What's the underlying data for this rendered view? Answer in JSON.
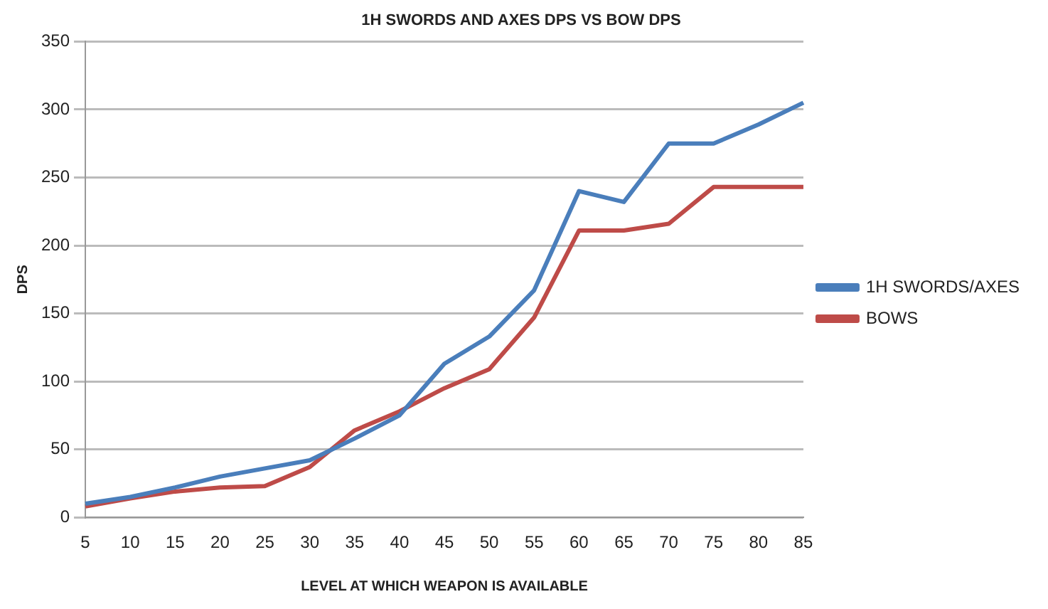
{
  "chart_data": {
    "type": "line",
    "title": "1H SWORDS AND AXES DPS VS BOW DPS",
    "xlabel": "LEVEL AT WHICH WEAPON IS AVAILABLE",
    "ylabel": "DPS",
    "categories": [
      "5",
      "10",
      "15",
      "20",
      "25",
      "30",
      "35",
      "40",
      "45",
      "50",
      "55",
      "60",
      "65",
      "70",
      "75",
      "80",
      "85"
    ],
    "series": [
      {
        "name": "1H SWORDS/AXES",
        "color": "#4a7ebb",
        "values": [
          10,
          15,
          22,
          30,
          36,
          42,
          58,
          75,
          113,
          133,
          167,
          240,
          232,
          275,
          275,
          289,
          305
        ]
      },
      {
        "name": "BOWS",
        "color": "#be4b48",
        "values": [
          8,
          14,
          19,
          22,
          23,
          37,
          64,
          78,
          95,
          109,
          147,
          211,
          211,
          216,
          243,
          243,
          243
        ]
      }
    ],
    "ylim": [
      0,
      350
    ],
    "yticks": [
      0,
      50,
      100,
      150,
      200,
      250,
      300,
      350
    ],
    "grid": "y",
    "legend": "right",
    "marker": "none",
    "line_style": "solid"
  }
}
